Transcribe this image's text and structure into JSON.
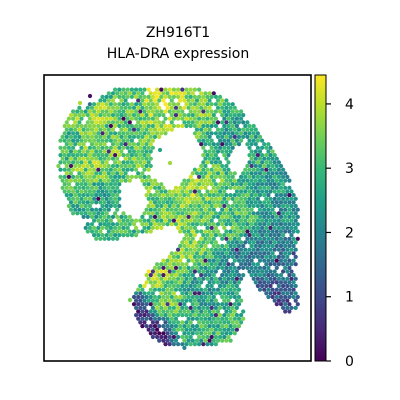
{
  "chart_data": {
    "type": "scatter",
    "title_line1": "ZH916T1",
    "title_line2": "HLA-DRA expression",
    "xlabel": "",
    "ylabel": "",
    "axes_ticks": false,
    "grid": false,
    "colormap": "viridis",
    "colorbar": {
      "min": 0,
      "max": 4.45,
      "ticks": [
        0,
        1,
        2,
        3,
        4
      ],
      "tick_labels": [
        "0",
        "1",
        "2",
        "3",
        "4"
      ],
      "placement": "right"
    },
    "colormap_stops": [
      "#440154",
      "#482878",
      "#3e4989",
      "#31688e",
      "#26828e",
      "#1f9e89",
      "#35b779",
      "#6ece58",
      "#b5de2b",
      "#fde725"
    ],
    "series": [
      {
        "points": [
          {
            "x": 0.16,
            "y": 0.92,
            "v": 0.2
          },
          {
            "x": 0.08,
            "y": 0.78,
            "v": 2.9
          },
          {
            "x": 0.12,
            "y": 0.85,
            "v": 3.6
          },
          {
            "x": 0.2,
            "y": 0.88,
            "v": 3.8
          },
          {
            "x": 0.3,
            "y": 0.9,
            "v": 3.2
          },
          {
            "x": 0.45,
            "y": 0.92,
            "v": 3.9
          },
          {
            "x": 0.6,
            "y": 0.9,
            "v": 3.4
          },
          {
            "x": 0.72,
            "y": 0.82,
            "v": 2.6
          },
          {
            "x": 0.82,
            "y": 0.72,
            "v": 2.8
          },
          {
            "x": 0.9,
            "y": 0.6,
            "v": 2.4
          },
          {
            "x": 0.95,
            "y": 0.45,
            "v": 2.2
          },
          {
            "x": 0.92,
            "y": 0.3,
            "v": 1.6
          },
          {
            "x": 0.85,
            "y": 0.22,
            "v": 1.2
          },
          {
            "x": 0.78,
            "y": 0.35,
            "v": 2.0
          },
          {
            "x": 0.68,
            "y": 0.5,
            "v": 3.1
          },
          {
            "x": 0.55,
            "y": 0.58,
            "v": 3.7
          },
          {
            "x": 0.42,
            "y": 0.55,
            "v": 3.3
          },
          {
            "x": 0.3,
            "y": 0.45,
            "v": 3.0
          },
          {
            "x": 0.22,
            "y": 0.55,
            "v": 2.7
          },
          {
            "x": 0.18,
            "y": 0.7,
            "v": 3.5
          },
          {
            "x": 0.38,
            "y": 0.3,
            "v": 3.9
          },
          {
            "x": 0.45,
            "y": 0.2,
            "v": 3.4
          },
          {
            "x": 0.55,
            "y": 0.12,
            "v": 2.9
          },
          {
            "x": 0.4,
            "y": 0.1,
            "v": 0.4
          },
          {
            "x": 0.35,
            "y": 0.18,
            "v": 0.8
          },
          {
            "x": 0.62,
            "y": 0.25,
            "v": 2.5
          },
          {
            "x": 0.7,
            "y": 0.15,
            "v": 3.0
          },
          {
            "x": 0.5,
            "y": 0.4,
            "v": 3.6
          }
        ]
      }
    ]
  }
}
